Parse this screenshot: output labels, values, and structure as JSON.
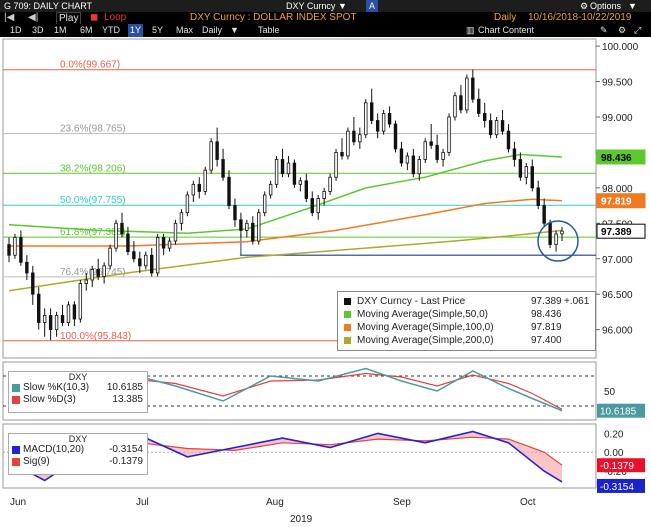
{
  "header": {
    "ticker": "G 709: DAILY CHART",
    "security": "DXY Curncy",
    "menu_arrow": "▼",
    "a_btn": "A",
    "options": "Options",
    "play": "Play",
    "loop": "Loop",
    "title": "DXY Curncy : DOLLAR INDEX SPOT",
    "period": "Daily",
    "date_range": "10/16/2018-10/22/2019",
    "ranges": [
      "1D",
      "3D",
      "1M",
      "6M",
      "YTD",
      "1Y",
      "5Y",
      "Max"
    ],
    "selected_range": "1Y",
    "freq": "Daily",
    "table": "Table",
    "chart_content": "Chart Content"
  },
  "colors": {
    "up": "#1a1a1a",
    "down": "#1a1a1a",
    "ma50": "#5cc82e",
    "ma100": "#f07a20",
    "ma200": "#b3a82a",
    "slowk": "#4a9aa0",
    "slowd": "#e8403a",
    "macd": "#2222dd",
    "sig": "#e8403a"
  },
  "chart_data": {
    "type": "candlestick",
    "y_ticks": [
      "100.000",
      "99.500",
      "99.000",
      "98.500",
      "98.000",
      "97.500",
      "97.000",
      "96.500",
      "96.000"
    ],
    "x_labels": [
      "Jun",
      "Jul",
      "Aug",
      "Sep",
      "Oct"
    ],
    "year_label": "2019",
    "ylim": [
      95.6,
      100.1
    ],
    "fib_levels": [
      {
        "label": "0.0%(99.667)",
        "value": 99.667,
        "color": "#e8604a"
      },
      {
        "label": "23.6%(98.765)",
        "value": 98.765,
        "color": "#bbbbbb"
      },
      {
        "label": "38.2%(98.206)",
        "value": 98.206,
        "color": "#5cc82e"
      },
      {
        "label": "50.0%(97.755)",
        "value": 97.755,
        "color": "#33cccc"
      },
      {
        "label": "61.8%(97.305)",
        "value": 97.305,
        "color": "#5cc82e"
      },
      {
        "label": "76.4%(96.745)",
        "value": 96.745,
        "color": "#bbbbbb"
      },
      {
        "label": "100.0%(95.843)",
        "value": 95.843,
        "color": "#e8604a"
      }
    ],
    "last_price_tags": [
      {
        "label": "98.436",
        "value": 98.436,
        "bg": "#5cc82e",
        "fg": "#000"
      },
      {
        "label": "97.819",
        "value": 97.819,
        "bg": "#f07a20",
        "fg": "#fff"
      },
      {
        "label": "97.389",
        "value": 97.389,
        "bg": "#ffffff",
        "fg": "#000"
      }
    ],
    "legend": {
      "title": "DXY Curncy - Last Price",
      "title_value": "97.389",
      "title_change": "+.061",
      "rows": [
        {
          "name": "Moving Average(Simple,50,0)",
          "value": "98.436"
        },
        {
          "name": "Moving Average(Simple,100,0)",
          "value": "97.819"
        },
        {
          "name": "Moving Average(Simple,200,0)",
          "value": "97.400"
        }
      ]
    },
    "candles": [
      [
        97.2,
        97.3,
        96.95,
        97.05
      ],
      [
        97.05,
        97.35,
        97.0,
        97.3
      ],
      [
        97.3,
        97.4,
        96.9,
        96.95
      ],
      [
        96.95,
        97.05,
        96.7,
        96.8
      ],
      [
        96.8,
        96.9,
        96.35,
        96.5
      ],
      [
        96.5,
        96.6,
        96.0,
        96.1
      ],
      [
        96.1,
        96.3,
        95.9,
        96.2
      ],
      [
        96.2,
        96.3,
        95.85,
        96.0
      ],
      [
        96.0,
        96.25,
        95.9,
        96.2
      ],
      [
        96.2,
        96.35,
        96.05,
        96.1
      ],
      [
        96.1,
        96.4,
        96.05,
        96.35
      ],
      [
        96.35,
        96.4,
        96.05,
        96.15
      ],
      [
        96.15,
        96.7,
        96.1,
        96.65
      ],
      [
        96.65,
        96.8,
        96.55,
        96.7
      ],
      [
        96.7,
        96.9,
        96.6,
        96.85
      ],
      [
        96.85,
        97.0,
        96.7,
        96.75
      ],
      [
        96.75,
        96.95,
        96.65,
        96.9
      ],
      [
        96.9,
        97.2,
        96.85,
        97.15
      ],
      [
        97.15,
        97.55,
        97.1,
        97.5
      ],
      [
        97.5,
        97.65,
        97.3,
        97.35
      ],
      [
        97.35,
        97.45,
        97.05,
        97.1
      ],
      [
        97.1,
        97.25,
        96.95,
        97.0
      ],
      [
        97.0,
        97.1,
        96.8,
        96.9
      ],
      [
        96.9,
        97.1,
        96.85,
        97.05
      ],
      [
        97.05,
        97.15,
        96.75,
        96.8
      ],
      [
        96.8,
        97.35,
        96.75,
        97.3
      ],
      [
        97.3,
        97.35,
        97.05,
        97.15
      ],
      [
        97.15,
        97.3,
        97.1,
        97.25
      ],
      [
        97.25,
        97.55,
        97.2,
        97.5
      ],
      [
        97.5,
        97.7,
        97.4,
        97.65
      ],
      [
        97.65,
        97.95,
        97.6,
        97.9
      ],
      [
        97.9,
        98.1,
        97.8,
        98.05
      ],
      [
        98.05,
        98.15,
        97.85,
        97.95
      ],
      [
        97.95,
        98.3,
        97.9,
        98.25
      ],
      [
        98.25,
        98.7,
        98.2,
        98.65
      ],
      [
        98.65,
        98.85,
        98.3,
        98.4
      ],
      [
        98.4,
        98.55,
        98.1,
        98.15
      ],
      [
        98.15,
        98.25,
        97.7,
        97.75
      ],
      [
        97.75,
        97.85,
        97.45,
        97.55
      ],
      [
        97.55,
        97.65,
        97.3,
        97.4
      ],
      [
        97.4,
        97.55,
        97.3,
        97.5
      ],
      [
        97.5,
        97.6,
        97.2,
        97.25
      ],
      [
        97.25,
        97.7,
        97.2,
        97.65
      ],
      [
        97.65,
        97.95,
        97.6,
        97.9
      ],
      [
        97.9,
        98.1,
        97.85,
        98.05
      ],
      [
        98.05,
        98.45,
        98.0,
        98.4
      ],
      [
        98.4,
        98.55,
        98.15,
        98.2
      ],
      [
        98.2,
        98.45,
        98.15,
        98.35
      ],
      [
        98.35,
        98.4,
        98.0,
        98.05
      ],
      [
        98.05,
        98.15,
        97.95,
        98.1
      ],
      [
        98.1,
        98.2,
        97.8,
        97.85
      ],
      [
        97.85,
        97.95,
        97.6,
        97.65
      ],
      [
        97.65,
        97.9,
        97.55,
        97.85
      ],
      [
        97.85,
        98.0,
        97.75,
        97.95
      ],
      [
        97.95,
        98.2,
        97.9,
        98.15
      ],
      [
        98.15,
        98.55,
        98.1,
        98.5
      ],
      [
        98.5,
        98.7,
        98.4,
        98.45
      ],
      [
        98.45,
        98.85,
        98.4,
        98.8
      ],
      [
        98.8,
        99.0,
        98.6,
        98.65
      ],
      [
        98.65,
        98.85,
        98.55,
        98.75
      ],
      [
        98.75,
        99.25,
        98.7,
        99.2
      ],
      [
        99.2,
        99.4,
        98.9,
        98.95
      ],
      [
        98.95,
        99.05,
        98.7,
        98.8
      ],
      [
        98.8,
        99.1,
        98.75,
        99.05
      ],
      [
        99.05,
        99.15,
        98.85,
        98.9
      ],
      [
        98.9,
        98.95,
        98.5,
        98.55
      ],
      [
        98.55,
        98.65,
        98.3,
        98.35
      ],
      [
        98.35,
        98.5,
        98.25,
        98.45
      ],
      [
        98.45,
        98.55,
        98.15,
        98.2
      ],
      [
        98.2,
        98.45,
        98.1,
        98.4
      ],
      [
        98.4,
        98.7,
        98.35,
        98.65
      ],
      [
        98.65,
        98.9,
        98.55,
        98.6
      ],
      [
        98.6,
        98.75,
        98.35,
        98.4
      ],
      [
        98.4,
        98.55,
        98.3,
        98.5
      ],
      [
        98.5,
        99.05,
        98.45,
        99.0
      ],
      [
        99.0,
        99.35,
        98.95,
        99.3
      ],
      [
        99.3,
        99.45,
        99.05,
        99.1
      ],
      [
        99.1,
        99.6,
        99.05,
        99.55
      ],
      [
        99.55,
        99.67,
        99.2,
        99.25
      ],
      [
        99.25,
        99.4,
        99.0,
        99.05
      ],
      [
        99.05,
        99.2,
        98.85,
        98.95
      ],
      [
        98.95,
        99.05,
        98.7,
        98.75
      ],
      [
        98.75,
        99.0,
        98.7,
        98.95
      ],
      [
        98.95,
        99.1,
        98.75,
        98.8
      ],
      [
        98.8,
        98.9,
        98.5,
        98.55
      ],
      [
        98.55,
        98.65,
        98.3,
        98.4
      ],
      [
        98.4,
        98.5,
        98.1,
        98.15
      ],
      [
        98.15,
        98.35,
        98.05,
        98.3
      ],
      [
        98.3,
        98.4,
        97.95,
        98.0
      ],
      [
        98.0,
        98.1,
        97.7,
        97.75
      ],
      [
        97.75,
        97.85,
        97.45,
        97.5
      ],
      [
        97.5,
        97.55,
        97.15,
        97.2
      ],
      [
        97.2,
        97.4,
        97.1,
        97.35
      ],
      [
        97.35,
        97.45,
        97.25,
        97.39
      ]
    ],
    "ma50": [
      [
        0,
        97.48
      ],
      [
        15,
        97.4
      ],
      [
        30,
        97.36
      ],
      [
        40,
        97.42
      ],
      [
        50,
        97.7
      ],
      [
        60,
        98.0
      ],
      [
        70,
        98.15
      ],
      [
        80,
        98.38
      ],
      [
        86,
        98.47
      ],
      [
        93,
        98.436
      ]
    ],
    "ma100": [
      [
        0,
        97.18
      ],
      [
        20,
        97.18
      ],
      [
        40,
        97.24
      ],
      [
        55,
        97.4
      ],
      [
        70,
        97.62
      ],
      [
        80,
        97.78
      ],
      [
        88,
        97.84
      ],
      [
        93,
        97.819
      ]
    ],
    "ma200": [
      [
        0,
        96.55
      ],
      [
        20,
        96.8
      ],
      [
        40,
        97.02
      ],
      [
        60,
        97.15
      ],
      [
        75,
        97.25
      ],
      [
        85,
        97.33
      ],
      [
        93,
        97.4
      ]
    ],
    "support_line": [
      [
        39,
        97.05
      ],
      [
        93,
        97.05
      ]
    ],
    "stoch": {
      "title": "DXY",
      "k_label": "Slow %K(10,3)",
      "k_value": "10.6185",
      "d_label": "Slow %D(3)",
      "d_value": "13.385",
      "ticks": [
        "50"
      ],
      "k_tag": "10.6185",
      "ylim": [
        0,
        100
      ],
      "k": [
        [
          0,
          75
        ],
        [
          6,
          20
        ],
        [
          12,
          45
        ],
        [
          20,
          85
        ],
        [
          28,
          60
        ],
        [
          36,
          30
        ],
        [
          44,
          80
        ],
        [
          52,
          70
        ],
        [
          60,
          95
        ],
        [
          66,
          70
        ],
        [
          72,
          50
        ],
        [
          78,
          90
        ],
        [
          84,
          55
        ],
        [
          88,
          35
        ],
        [
          93,
          10.6
        ]
      ],
      "d": [
        [
          0,
          70
        ],
        [
          6,
          30
        ],
        [
          12,
          35
        ],
        [
          20,
          75
        ],
        [
          28,
          65
        ],
        [
          36,
          40
        ],
        [
          44,
          70
        ],
        [
          52,
          72
        ],
        [
          60,
          85
        ],
        [
          66,
          78
        ],
        [
          72,
          60
        ],
        [
          78,
          82
        ],
        [
          84,
          65
        ],
        [
          88,
          45
        ],
        [
          93,
          13.4
        ]
      ]
    },
    "macd": {
      "title": "DXY",
      "macd_label": "MACD(10,20)",
      "macd_value": "-0.3154",
      "sig_label": "Sig(9)",
      "sig_value": "-0.1379",
      "ticks": [
        "0.20",
        "0.00",
        "-0.20"
      ],
      "sig_tag": "-0.1379",
      "macd_tag": "-0.3154",
      "ylim": [
        -0.38,
        0.3
      ],
      "macd": [
        [
          0,
          -0.1
        ],
        [
          6,
          -0.3
        ],
        [
          12,
          -0.05
        ],
        [
          22,
          0.18
        ],
        [
          30,
          -0.05
        ],
        [
          38,
          0.05
        ],
        [
          46,
          0.15
        ],
        [
          54,
          0.05
        ],
        [
          62,
          0.2
        ],
        [
          70,
          0.1
        ],
        [
          78,
          0.22
        ],
        [
          84,
          0.1
        ],
        [
          90,
          -0.2
        ],
        [
          93,
          -0.3154
        ]
      ],
      "sig": [
        [
          0,
          -0.05
        ],
        [
          6,
          -0.2
        ],
        [
          12,
          -0.12
        ],
        [
          22,
          0.1
        ],
        [
          30,
          0.04
        ],
        [
          38,
          0.02
        ],
        [
          46,
          0.1
        ],
        [
          54,
          0.08
        ],
        [
          62,
          0.14
        ],
        [
          70,
          0.12
        ],
        [
          78,
          0.16
        ],
        [
          84,
          0.14
        ],
        [
          90,
          0.0
        ],
        [
          93,
          -0.1379
        ]
      ]
    }
  }
}
